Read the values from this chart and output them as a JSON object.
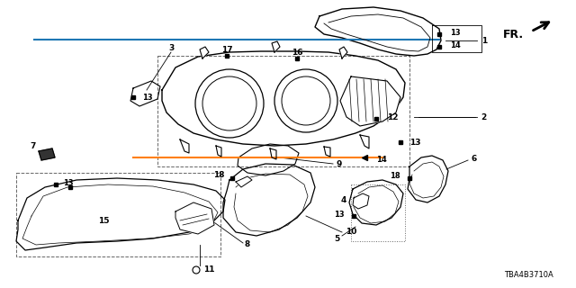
{
  "bg_color": "#ffffff",
  "diagram_code": "TBA4B3710A",
  "lc": "#000000",
  "lw": 0.8
}
